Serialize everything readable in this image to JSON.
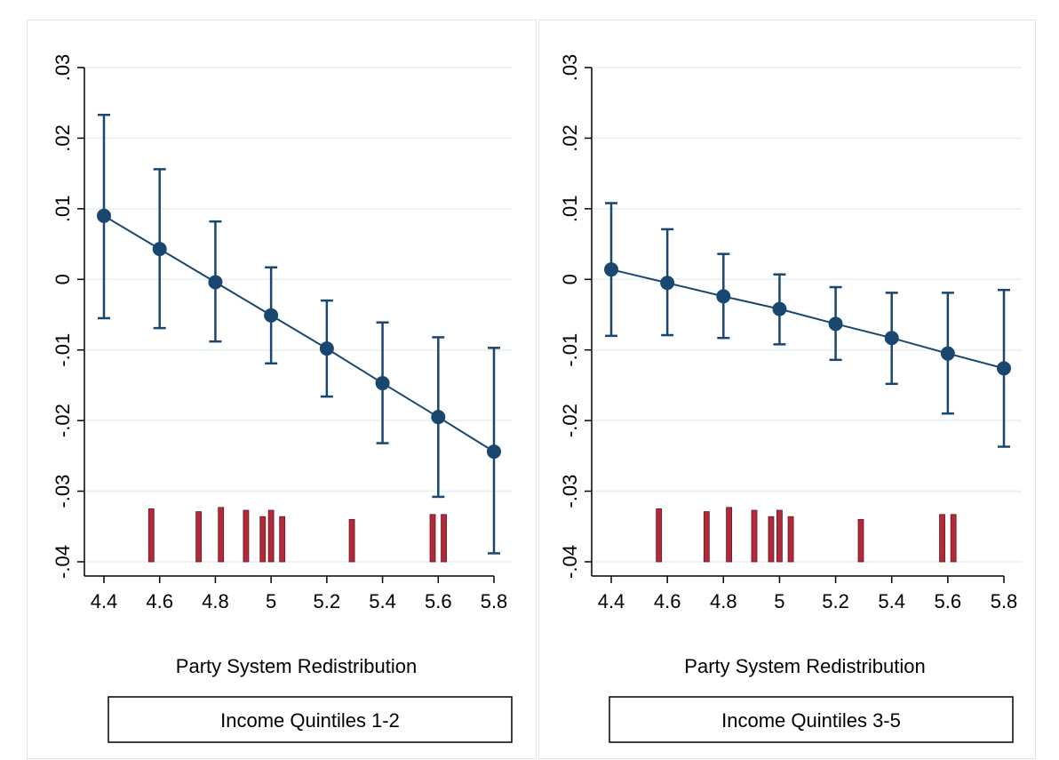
{
  "chart_data": [
    {
      "type": "line",
      "title": "",
      "xlabel": "Party System Redistribution",
      "ylabel": "",
      "subtitle_box": "Income Quintiles 1-2",
      "x_ticks": [
        "4.4",
        "4.6",
        "4.8",
        "5",
        "5.2",
        "5.4",
        "5.6",
        "5.8"
      ],
      "y_ticks": [
        "-.04",
        "-.03",
        "-.02",
        "-.01",
        "0",
        ".01",
        ".02",
        ".03"
      ],
      "xlim": [
        4.4,
        5.8
      ],
      "ylim": [
        -0.04,
        0.03
      ],
      "grid": true,
      "series": [
        {
          "x": [
            4.4,
            4.6,
            4.8,
            5.0,
            5.2,
            5.4,
            5.6,
            5.8
          ],
          "y": [
            0.009,
            0.0043,
            -0.0004,
            -0.0051,
            -0.0098,
            -0.0147,
            -0.0195,
            -0.0244
          ],
          "ci_low": [
            -0.0055,
            -0.0069,
            -0.0088,
            -0.0119,
            -0.0166,
            -0.0232,
            -0.0308,
            -0.0388
          ],
          "ci_high": [
            0.0233,
            0.0156,
            0.0082,
            0.0017,
            -0.003,
            -0.0061,
            -0.0082,
            -0.0097
          ]
        }
      ],
      "rug": [
        {
          "x": 4.57,
          "top": -0.0325
        },
        {
          "x": 4.74,
          "top": -0.0329
        },
        {
          "x": 4.82,
          "top": -0.0323
        },
        {
          "x": 4.91,
          "top": -0.0327
        },
        {
          "x": 4.97,
          "top": -0.0336
        },
        {
          "x": 5.0,
          "top": -0.0327
        },
        {
          "x": 5.04,
          "top": -0.0336
        },
        {
          "x": 5.29,
          "top": -0.034
        },
        {
          "x": 5.58,
          "top": -0.0333
        },
        {
          "x": 5.62,
          "top": -0.0333
        }
      ],
      "colors": {
        "line": "#1a476f",
        "rug": "#b02a3a",
        "grid": "#eaf2f3"
      }
    },
    {
      "type": "line",
      "title": "",
      "xlabel": "Party System Redistribution",
      "ylabel": "",
      "subtitle_box": "Income Quintiles 3-5",
      "x_ticks": [
        "4.4",
        "4.6",
        "4.8",
        "5",
        "5.2",
        "5.4",
        "5.6",
        "5.8"
      ],
      "y_ticks": [
        "-.04",
        "-.03",
        "-.02",
        "-.01",
        "0",
        ".01",
        ".02",
        ".03"
      ],
      "xlim": [
        4.4,
        5.8
      ],
      "ylim": [
        -0.04,
        0.03
      ],
      "grid": true,
      "series": [
        {
          "x": [
            4.4,
            4.6,
            4.8,
            5.0,
            5.2,
            5.4,
            5.6,
            5.8
          ],
          "y": [
            0.0014,
            -0.0005,
            -0.0024,
            -0.0042,
            -0.0063,
            -0.0083,
            -0.0105,
            -0.0126
          ],
          "ci_low": [
            -0.008,
            -0.0079,
            -0.0083,
            -0.0092,
            -0.0114,
            -0.0148,
            -0.019,
            -0.0237
          ],
          "ci_high": [
            0.0108,
            0.0071,
            0.0036,
            0.0007,
            -0.0011,
            -0.0019,
            -0.0019,
            -0.0015
          ]
        }
      ],
      "rug": [
        {
          "x": 4.57,
          "top": -0.0325
        },
        {
          "x": 4.74,
          "top": -0.0329
        },
        {
          "x": 4.82,
          "top": -0.0323
        },
        {
          "x": 4.91,
          "top": -0.0327
        },
        {
          "x": 4.97,
          "top": -0.0336
        },
        {
          "x": 5.0,
          "top": -0.0327
        },
        {
          "x": 5.04,
          "top": -0.0336
        },
        {
          "x": 5.29,
          "top": -0.034
        },
        {
          "x": 5.58,
          "top": -0.0333
        },
        {
          "x": 5.62,
          "top": -0.0333
        }
      ],
      "colors": {
        "line": "#1a476f",
        "rug": "#b02a3a",
        "grid": "#eaf2f3"
      }
    }
  ]
}
